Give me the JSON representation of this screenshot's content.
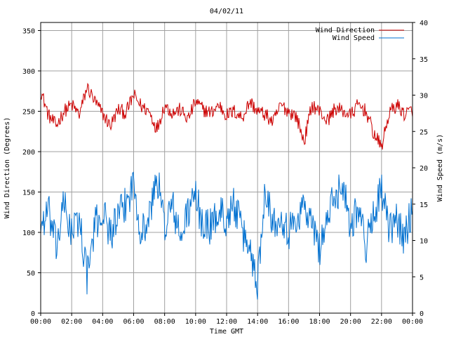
{
  "chart_data": {
    "type": "line",
    "title": "04/02/11",
    "xlabel": "Time GMT",
    "ylabel": "Wind Direction (Degrees)",
    "y2label": "Wind Speed (m/s)",
    "x_ticks": [
      "00:00",
      "02:00",
      "04:00",
      "06:00",
      "08:00",
      "10:00",
      "12:00",
      "14:00",
      "16:00",
      "18:00",
      "20:00",
      "22:00",
      "00:00"
    ],
    "x_range_hours": [
      0,
      24
    ],
    "ylim": [
      0,
      360
    ],
    "y_ticks": [
      0,
      50,
      100,
      150,
      200,
      250,
      300,
      350
    ],
    "y2lim": [
      0,
      40
    ],
    "y2_ticks": [
      0,
      5,
      10,
      15,
      20,
      25,
      30,
      35,
      40
    ],
    "grid": true,
    "legend_position": "top-right",
    "series": [
      {
        "name": "Wind Direction",
        "axis": "left",
        "color": "#cc0000",
        "x": [
          0.0,
          0.5,
          1.0,
          1.5,
          2.0,
          2.5,
          3.0,
          3.5,
          4.0,
          4.5,
          5.0,
          5.5,
          6.0,
          6.5,
          7.0,
          7.5,
          8.0,
          8.5,
          9.0,
          9.5,
          10.0,
          10.5,
          11.0,
          11.5,
          12.0,
          12.5,
          13.0,
          13.5,
          14.0,
          14.5,
          15.0,
          15.5,
          16.0,
          16.5,
          17.0,
          17.5,
          18.0,
          18.5,
          19.0,
          19.5,
          20.0,
          20.5,
          21.0,
          21.5,
          22.0,
          22.5,
          23.0,
          23.5,
          24.0
        ],
        "values": [
          276,
          245,
          232,
          250,
          258,
          246,
          280,
          262,
          247,
          232,
          252,
          248,
          270,
          256,
          250,
          228,
          258,
          248,
          252,
          240,
          262,
          252,
          248,
          258,
          245,
          250,
          242,
          262,
          250,
          246,
          236,
          258,
          250,
          244,
          212,
          258,
          250,
          238,
          254,
          250,
          245,
          258,
          250,
          222,
          206,
          248,
          258,
          246,
          252
        ]
      },
      {
        "name": "Wind Speed",
        "axis": "right",
        "color": "#0070d0",
        "x": [
          0.0,
          0.5,
          1.0,
          1.5,
          2.0,
          2.5,
          3.0,
          3.5,
          4.0,
          4.5,
          5.0,
          5.5,
          6.0,
          6.5,
          7.0,
          7.5,
          8.0,
          8.5,
          9.0,
          9.5,
          10.0,
          10.5,
          11.0,
          11.5,
          12.0,
          12.5,
          13.0,
          13.5,
          14.0,
          14.5,
          15.0,
          15.5,
          16.0,
          16.5,
          17.0,
          17.5,
          18.0,
          18.5,
          19.0,
          19.5,
          20.0,
          20.5,
          21.0,
          21.5,
          22.0,
          22.5,
          23.0,
          23.5,
          24.0
        ],
        "values": [
          12,
          14,
          9,
          15,
          11,
          13,
          5,
          12,
          14,
          11,
          13,
          15,
          18,
          11,
          13,
          19,
          12,
          15,
          10,
          14,
          16,
          12,
          12,
          14,
          13,
          15,
          11,
          9,
          4,
          18,
          12,
          14,
          11,
          13,
          15,
          12,
          9,
          13,
          16,
          18,
          12,
          15,
          9,
          14,
          17,
          11,
          13,
          10,
          15
        ]
      }
    ]
  }
}
